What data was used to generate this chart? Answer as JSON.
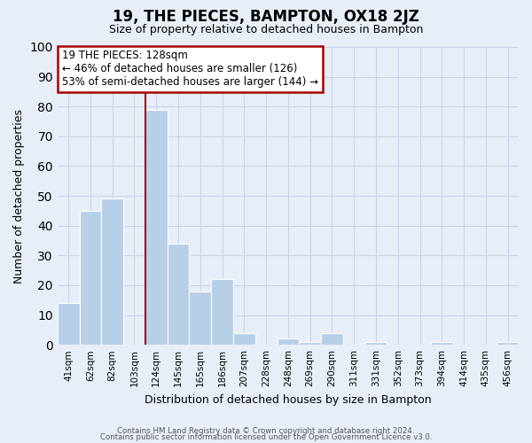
{
  "title": "19, THE PIECES, BAMPTON, OX18 2JZ",
  "subtitle": "Size of property relative to detached houses in Bampton",
  "xlabel": "Distribution of detached houses by size in Bampton",
  "ylabel": "Number of detached properties",
  "bar_labels": [
    "41sqm",
    "62sqm",
    "82sqm",
    "103sqm",
    "124sqm",
    "145sqm",
    "165sqm",
    "186sqm",
    "207sqm",
    "228sqm",
    "248sqm",
    "269sqm",
    "290sqm",
    "311sqm",
    "331sqm",
    "352sqm",
    "373sqm",
    "394sqm",
    "414sqm",
    "435sqm",
    "456sqm"
  ],
  "bar_values": [
    14,
    45,
    49,
    0,
    79,
    34,
    18,
    22,
    4,
    0,
    2,
    1,
    4,
    0,
    1,
    0,
    0,
    1,
    0,
    0,
    1
  ],
  "bar_color": "#b8cfe8",
  "bar_edgecolor": "#ffffff",
  "redline_index": 4,
  "ylim": [
    0,
    100
  ],
  "yticks": [
    0,
    10,
    20,
    30,
    40,
    50,
    60,
    70,
    80,
    90,
    100
  ],
  "annotation_box_text": "19 THE PIECES: 128sqm\n← 46% of detached houses are smaller (126)\n53% of semi-detached houses are larger (144) →",
  "footer_line1": "Contains HM Land Registry data © Crown copyright and database right 2024.",
  "footer_line2": "Contains public sector information licensed under the Open Government Licence v3.0.",
  "grid_color": "#c8d4e8",
  "background_color": "#e8eef8",
  "redline_color": "#aa0000"
}
